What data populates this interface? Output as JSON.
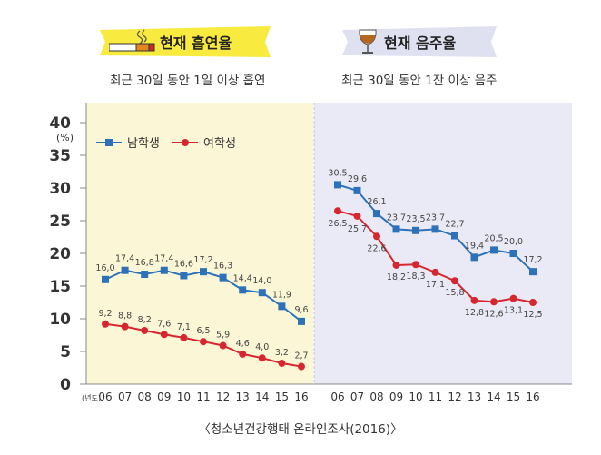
{
  "panels": {
    "left": {
      "title": "현재 흡연율",
      "subtitle": "최근 30일 동안 1일 이상 흡연",
      "icon": "cigarette-icon",
      "banner_color": "#f8ea3f"
    },
    "right": {
      "title": "현재 음주율",
      "subtitle": "최근 30일 동안 1잔 이상 음주",
      "icon": "wine-glass-icon",
      "banner_color": "#dfe1f1"
    }
  },
  "source": "〈청소년건강행태 온라인조사(2016)〉",
  "chart_data": [
    {
      "type": "line",
      "panel": "left",
      "x": [
        "06",
        "07",
        "08",
        "09",
        "10",
        "11",
        "12",
        "13",
        "14",
        "15",
        "16"
      ],
      "x_prefix_label": "(년도)",
      "ylabel": "(%)",
      "ylim": [
        0,
        40
      ],
      "yticks": [
        0,
        5,
        10,
        15,
        20,
        25,
        30,
        35,
        40
      ],
      "background_color": "#fbf7d6",
      "legend_position": "top-left",
      "series": [
        {
          "name": "남학생",
          "color": "#2d72b8",
          "marker": "square",
          "values": [
            16.0,
            17.4,
            16.8,
            17.4,
            16.6,
            17.2,
            16.3,
            14.4,
            14.0,
            11.9,
            9.6
          ],
          "labels": [
            "16,0",
            "17,4",
            "16,8",
            "17,4",
            "16,6",
            "17,2",
            "16,3",
            "14,4",
            "14,0",
            "11,9",
            "9,6"
          ]
        },
        {
          "name": "여학생",
          "color": "#d6262f",
          "marker": "circle",
          "values": [
            9.2,
            8.8,
            8.2,
            7.6,
            7.1,
            6.5,
            5.9,
            4.6,
            4.0,
            3.2,
            2.7
          ],
          "labels": [
            "9,2",
            "8,8",
            "8,2",
            "7,6",
            "7,1",
            "6,5",
            "5,9",
            "4,6",
            "4,0",
            "3,2",
            "2,7"
          ]
        }
      ]
    },
    {
      "type": "line",
      "panel": "right",
      "x": [
        "06",
        "07",
        "08",
        "09",
        "10",
        "11",
        "12",
        "13",
        "14",
        "15",
        "16"
      ],
      "ylim": [
        0,
        40
      ],
      "background_color": "#eaeaf6",
      "series": [
        {
          "name": "남학생",
          "color": "#2d72b8",
          "marker": "square",
          "values": [
            30.5,
            29.6,
            26.1,
            23.7,
            23.5,
            23.7,
            22.7,
            19.4,
            20.5,
            20.0,
            17.2
          ],
          "labels": [
            "30,5",
            "29,6",
            "26,1",
            "23,7",
            "23,5",
            "23,7",
            "22,7",
            "19,4",
            "20,5",
            "20,0",
            "17,2"
          ]
        },
        {
          "name": "여학생",
          "color": "#d6262f",
          "marker": "circle",
          "values": [
            26.5,
            25.7,
            22.6,
            18.2,
            18.3,
            17.1,
            15.8,
            12.8,
            12.6,
            13.1,
            12.5
          ],
          "labels": [
            "26,5",
            "25,7",
            "22,6",
            "18,2",
            "18,3",
            "17,1",
            "15,8",
            "12,8",
            "12,6",
            "13,1",
            "12,5"
          ]
        }
      ]
    }
  ]
}
